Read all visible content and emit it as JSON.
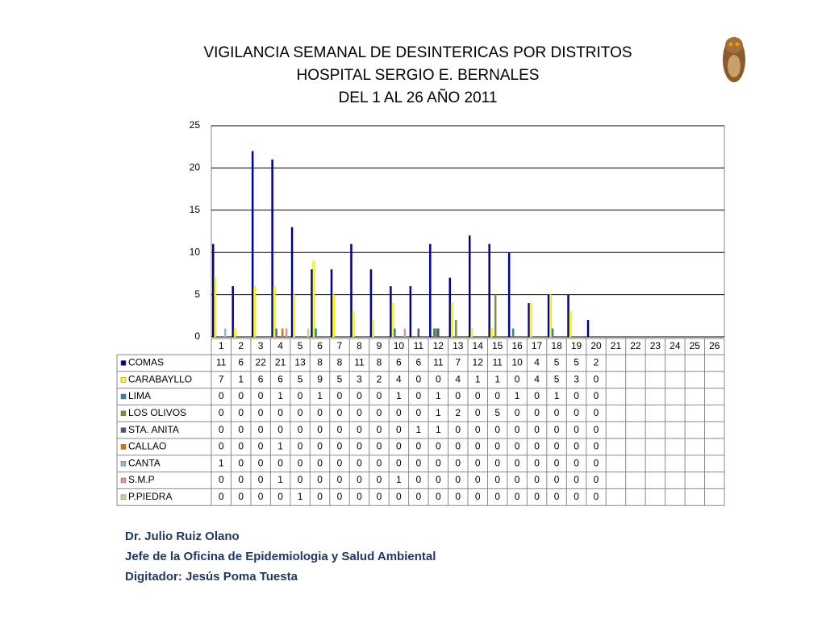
{
  "chart_data": {
    "type": "bar",
    "title": [
      "VIGILANCIA SEMANAL DE DESINTERICAS POR DISTRITOS",
      "HOSPITAL SERGIO E. BERNALES",
      "DEL 1 AL 26 AÑO 2011"
    ],
    "categories": [
      "1",
      "2",
      "3",
      "4",
      "5",
      "6",
      "7",
      "8",
      "9",
      "10",
      "11",
      "12",
      "13",
      "14",
      "15",
      "16",
      "17",
      "18",
      "19",
      "20",
      "21",
      "22",
      "23",
      "24",
      "25",
      "26"
    ],
    "series": [
      {
        "name": "COMAS",
        "color": "#000099",
        "values": [
          11,
          6,
          22,
          21,
          13,
          8,
          8,
          11,
          8,
          6,
          6,
          11,
          7,
          12,
          11,
          10,
          4,
          5,
          5,
          2,
          null,
          null,
          null,
          null,
          null,
          null
        ]
      },
      {
        "name": "CARABAYLLO",
        "color": "#ffff00",
        "values": [
          7,
          1,
          6,
          6,
          5,
          9,
          5,
          3,
          2,
          4,
          0,
          0,
          4,
          1,
          1,
          0,
          4,
          5,
          3,
          0,
          null,
          null,
          null,
          null,
          null,
          null
        ]
      },
      {
        "name": "LIMA",
        "color": "#31859c",
        "values": [
          0,
          0,
          0,
          1,
          0,
          1,
          0,
          0,
          0,
          1,
          0,
          1,
          0,
          0,
          0,
          1,
          0,
          1,
          0,
          0,
          null,
          null,
          null,
          null,
          null,
          null
        ]
      },
      {
        "name": "LOS OLIVOS",
        "color": "#77933c",
        "values": [
          0,
          0,
          0,
          0,
          0,
          0,
          0,
          0,
          0,
          0,
          0,
          1,
          2,
          0,
          5,
          0,
          0,
          0,
          0,
          0,
          null,
          null,
          null,
          null,
          null,
          null
        ]
      },
      {
        "name": "STA. ANITA",
        "color": "#604a7b",
        "values": [
          0,
          0,
          0,
          0,
          0,
          0,
          0,
          0,
          0,
          0,
          1,
          1,
          0,
          0,
          0,
          0,
          0,
          0,
          0,
          0,
          null,
          null,
          null,
          null,
          null,
          null
        ]
      },
      {
        "name": "CALLAO",
        "color": "#e46c0a",
        "values": [
          0,
          0,
          0,
          1,
          0,
          0,
          0,
          0,
          0,
          0,
          0,
          0,
          0,
          0,
          0,
          0,
          0,
          0,
          0,
          0,
          null,
          null,
          null,
          null,
          null,
          null
        ]
      },
      {
        "name": "CANTA",
        "color": "#95b3d7",
        "values": [
          1,
          0,
          0,
          0,
          0,
          0,
          0,
          0,
          0,
          0,
          0,
          0,
          0,
          0,
          0,
          0,
          0,
          0,
          0,
          0,
          null,
          null,
          null,
          null,
          null,
          null
        ]
      },
      {
        "name": "S.M.P",
        "color": "#d99694",
        "values": [
          0,
          0,
          0,
          1,
          0,
          0,
          0,
          0,
          0,
          1,
          0,
          0,
          0,
          0,
          0,
          0,
          0,
          0,
          0,
          0,
          null,
          null,
          null,
          null,
          null,
          null
        ]
      },
      {
        "name": "P.PIEDRA",
        "color": "#c3d69b",
        "values": [
          0,
          0,
          0,
          0,
          1,
          0,
          0,
          0,
          0,
          0,
          0,
          0,
          0,
          0,
          0,
          0,
          0,
          0,
          0,
          0,
          null,
          null,
          null,
          null,
          null,
          null
        ]
      }
    ],
    "ylim": [
      0,
      25
    ],
    "yticks": [
      0,
      5,
      10,
      15,
      20,
      25
    ],
    "grid": true,
    "footer": [
      "Dr.  Julio Ruiz Olano",
      "Jefe de la Oficina de Epidemiologia y  Salud Ambiental",
      "Digitador: Jesús Poma Tuesta"
    ]
  }
}
